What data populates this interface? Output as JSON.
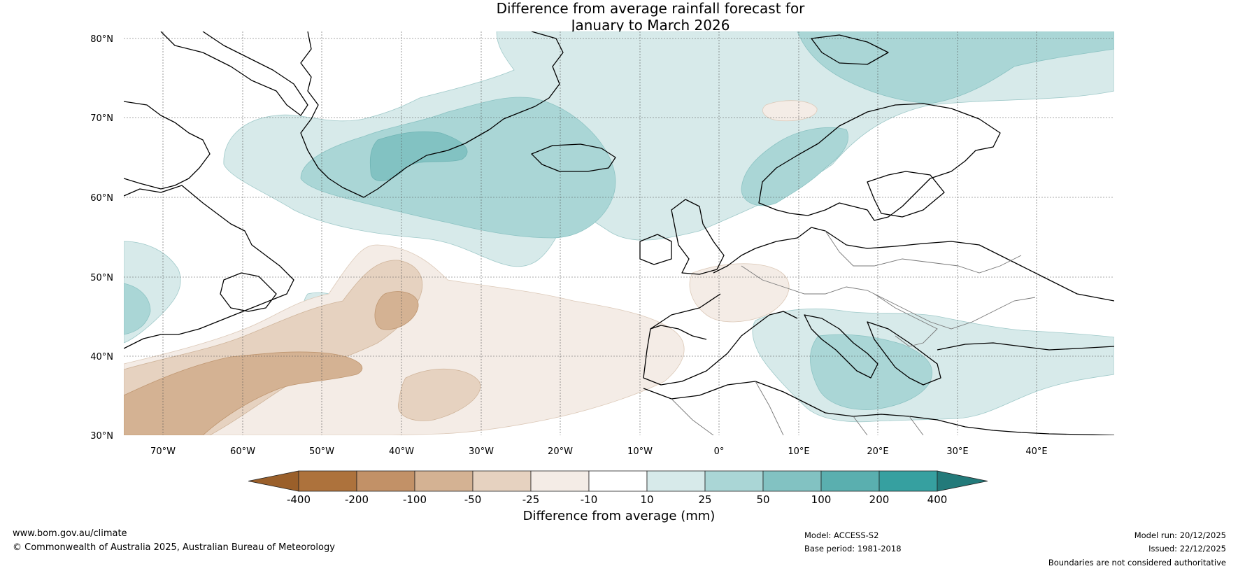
{
  "title": {
    "line1": "Difference from average rainfall forecast for",
    "line2": "January to March 2026"
  },
  "map": {
    "lat_labels": [
      "80°N",
      "70°N",
      "60°N",
      "50°N",
      "40°N",
      "30°N"
    ],
    "lon_labels": [
      "70°W",
      "60°W",
      "50°W",
      "40°W",
      "30°W",
      "20°W",
      "10°W",
      "0°",
      "10°E",
      "20°E",
      "30°E",
      "40°E"
    ]
  },
  "colorbar": {
    "title": "Difference from average (mm)",
    "ticks": [
      "-400",
      "-200",
      "-100",
      "-50",
      "-25",
      "-10",
      "10",
      "25",
      "50",
      "100",
      "200",
      "400"
    ],
    "colors": [
      "#9a5f2a",
      "#ad723c",
      "#c29167",
      "#d4b293",
      "#e6d2c0",
      "#f4ece6",
      "#ffffff",
      "#d7eaea",
      "#aad6d6",
      "#82c2c2",
      "#5aafaf",
      "#36a0a0",
      "#237a7a"
    ]
  },
  "footer": {
    "website": "www.bom.gov.au/climate",
    "copyright": "© Commonwealth of Australia 2025, Australian Bureau of Meteorology",
    "model": "Model: ACCESS-S2",
    "base_period": "Base period: 1981-2018",
    "model_run": "Model run: 20/12/2025",
    "issued": "Issued: 22/12/2025",
    "disclaimer": "Boundaries are not considered authoritative"
  }
}
